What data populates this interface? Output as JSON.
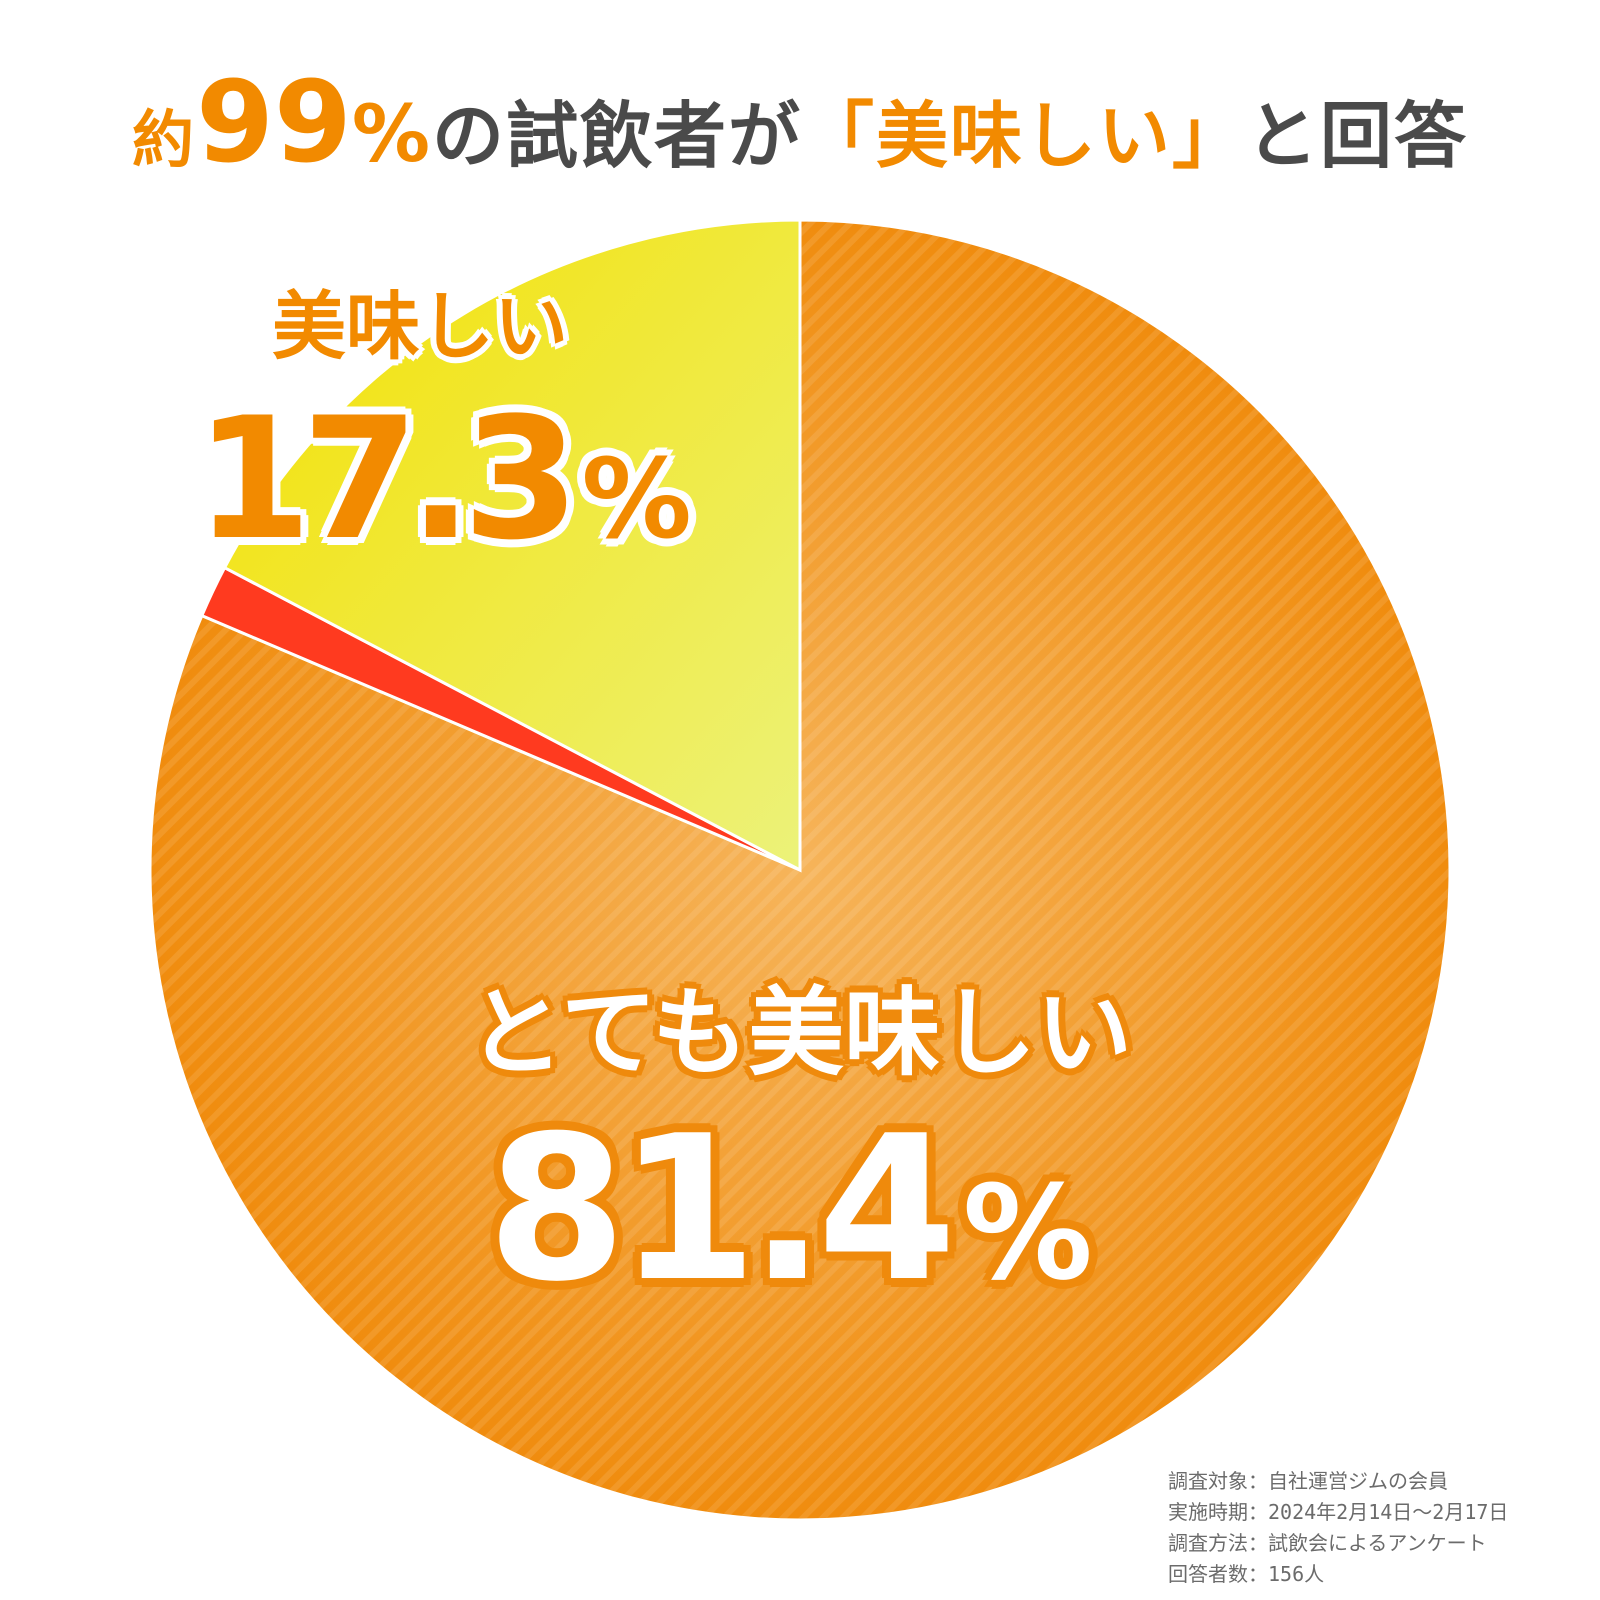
{
  "headline": {
    "prefix": "約",
    "number": "99",
    "percent": "%",
    "middle": "の試飲者が",
    "quote_open": "「",
    "quoted": "美味しい",
    "quote_close": "」",
    "suffix": "と回答"
  },
  "chart_data": {
    "type": "pie",
    "start_angle": "12 o'clock",
    "direction": "clockwise",
    "slices": [
      {
        "label": "とても美味しい",
        "value": 81.4,
        "display": "81.4",
        "unit": "%",
        "color": "#f39a1e"
      },
      {
        "label": "",
        "value": 1.3,
        "display": "",
        "unit": "",
        "color": "#ff3a1f"
      },
      {
        "label": "美味しい",
        "value": 17.3,
        "display": "17.3",
        "unit": "%",
        "color": "#f2e600"
      }
    ],
    "legend": "none"
  },
  "footnotes": [
    "調査対象：自社運営ジムの会員",
    "実施時期：2024年2月14日〜2月17日",
    "調査方法：試飲会によるアンケート",
    "回答者数：156人"
  ],
  "colors": {
    "accent": "#f28a00",
    "text_dark": "#4a4a4a",
    "slice_orange": "#f39a1e",
    "slice_yellow": "#f2e600",
    "slice_red": "#ff3a1f"
  }
}
